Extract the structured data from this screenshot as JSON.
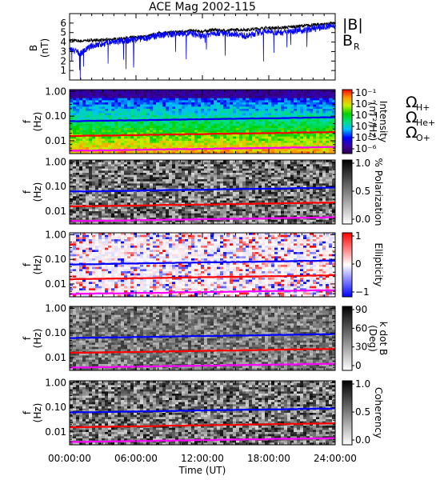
{
  "chart_data": [
    {
      "type": "line",
      "title": "ACE Mag 2002-115",
      "ylabel": "B",
      "yunit": "(nT)",
      "ylim": [
        0,
        7
      ],
      "yticks": [
        "1",
        "2",
        "3",
        "4",
        "5",
        "6"
      ],
      "grid": false,
      "legend": "right",
      "series": [
        {
          "name": "|B|",
          "color": "#000000",
          "x": [
            0,
            1,
            2,
            3,
            4,
            5,
            6,
            7,
            8,
            9,
            10,
            11,
            12,
            13,
            14,
            15,
            16,
            17,
            18,
            19,
            20,
            21,
            22,
            23,
            24
          ],
          "values": [
            4.2,
            4.1,
            4.2,
            4.2,
            4.3,
            4.4,
            4.5,
            4.6,
            4.9,
            5.0,
            5.1,
            5.2,
            5.1,
            5.3,
            5.2,
            5.3,
            5.3,
            5.4,
            5.5,
            5.5,
            5.6,
            5.7,
            5.8,
            5.9,
            6.0
          ]
        },
        {
          "name": "B",
          "name_sub": "R",
          "color": "#0000ff",
          "x": [
            0,
            1,
            2,
            3,
            4,
            5,
            6,
            7,
            8,
            9,
            10,
            11,
            12,
            13,
            14,
            15,
            16,
            17,
            18,
            19,
            20,
            21,
            22,
            23,
            24
          ],
          "values": [
            3.3,
            2.8,
            3.6,
            3.8,
            4.0,
            4.1,
            4.3,
            4.4,
            4.7,
            4.8,
            4.9,
            4.9,
            4.6,
            5.0,
            4.9,
            4.9,
            4.6,
            5.0,
            5.1,
            5.0,
            5.2,
            5.2,
            5.4,
            5.6,
            5.7
          ]
        }
      ]
    },
    {
      "type": "heatmap",
      "ylabel": "f",
      "yunit": "(Hz)",
      "yscale": "log",
      "ylim": [
        0.003,
        1.2
      ],
      "yticks": [
        "1.00",
        "0.10",
        "0.01"
      ],
      "colorbar": {
        "label": "Intensity",
        "unit": "(nT²/Hz)",
        "scale": "rainbow",
        "ticks": [
          "10⁻¹",
          "10⁻²",
          "10⁻³",
          "10⁻⁴",
          "10⁻⁵",
          "10⁻⁶"
        ]
      }
    },
    {
      "type": "heatmap",
      "ylabel": "f",
      "yunit": "(Hz)",
      "yscale": "log",
      "ylim": [
        0.003,
        1.2
      ],
      "yticks": [
        "1.00",
        "0.10",
        "0.01"
      ],
      "colorbar": {
        "label": "% Polarization",
        "scale": "grayscale",
        "ticks": [
          "1.0",
          "0.5",
          "0.0"
        ]
      }
    },
    {
      "type": "heatmap",
      "ylabel": "f",
      "yunit": "(Hz)",
      "yscale": "log",
      "ylim": [
        0.003,
        1.2
      ],
      "yticks": [
        "1.00",
        "0.10",
        "0.01"
      ],
      "colorbar": {
        "label": "Ellipticity",
        "scale": "blue-white-red",
        "ticks": [
          "1",
          "0",
          "−1"
        ]
      }
    },
    {
      "type": "heatmap",
      "ylabel": "f",
      "yunit": "(Hz)",
      "yscale": "log",
      "ylim": [
        0.003,
        1.2
      ],
      "yticks": [
        "1.00",
        "0.10",
        "0.01"
      ],
      "colorbar": {
        "label": "k dot B",
        "unit": "(Deg)",
        "scale": "grayscale",
        "ticks": [
          "90",
          "60",
          "30",
          "0"
        ]
      }
    },
    {
      "type": "heatmap",
      "ylabel": "f",
      "yunit": "(Hz)",
      "yscale": "log",
      "ylim": [
        0.003,
        1.2
      ],
      "yticks": [
        "1.00",
        "0.10",
        "0.01"
      ],
      "xlabel": "Time (UT)",
      "xticks": [
        "00:00:00",
        "06:00:00",
        "12:00:00",
        "18:00:00",
        "24:00:00"
      ],
      "colorbar": {
        "label": "Coherency",
        "scale": "grayscale",
        "ticks": [
          "1.0",
          "0.5",
          "0.0"
        ]
      }
    }
  ],
  "overlay_lines": [
    {
      "name": "Ω",
      "name_sub": "H+",
      "color": "#0000ff",
      "hz_start": 0.062,
      "hz_end": 0.09
    },
    {
      "name": "Ω",
      "name_sub": "He+",
      "color": "#ff0000",
      "hz_start": 0.0155,
      "hz_end": 0.0225
    },
    {
      "name": "Ω",
      "name_sub": "O+",
      "color": "#ff00ff",
      "hz_start": 0.0039,
      "hz_end": 0.0056
    }
  ]
}
